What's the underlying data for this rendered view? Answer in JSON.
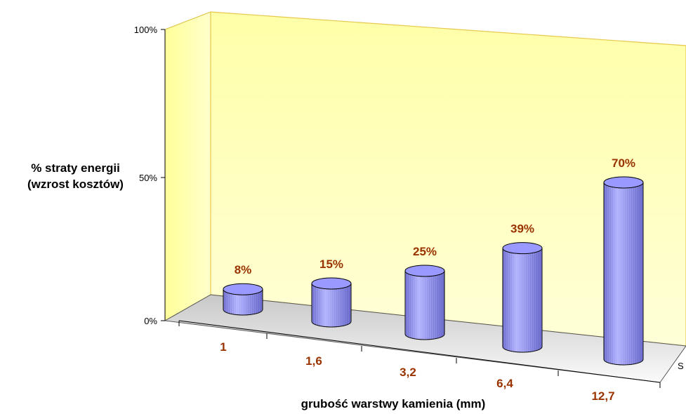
{
  "chart_data": {
    "type": "bar",
    "categories": [
      "1",
      "1,6",
      "3,2",
      "6,4",
      "12,7"
    ],
    "values": [
      8,
      15,
      25,
      39,
      70
    ],
    "data_labels": [
      "8%",
      "15%",
      "25%",
      "39%",
      "70%"
    ],
    "xlabel": "grubość warstwy kamienia (mm)",
    "ylabel_line1": "% straty energii",
    "ylabel_line2": "(wzrost kosztów)",
    "ylim": [
      0,
      100
    ],
    "yticks": [
      "0%",
      "50%",
      "100%"
    ],
    "series_label": "S",
    "grid": false,
    "legend": "right (cut off)",
    "colors": {
      "bar": "#8080e0",
      "bar_top": "#9999ff",
      "back_wall": "#ffff99",
      "floor": "#d8d8d8",
      "labels": "#993300"
    }
  }
}
